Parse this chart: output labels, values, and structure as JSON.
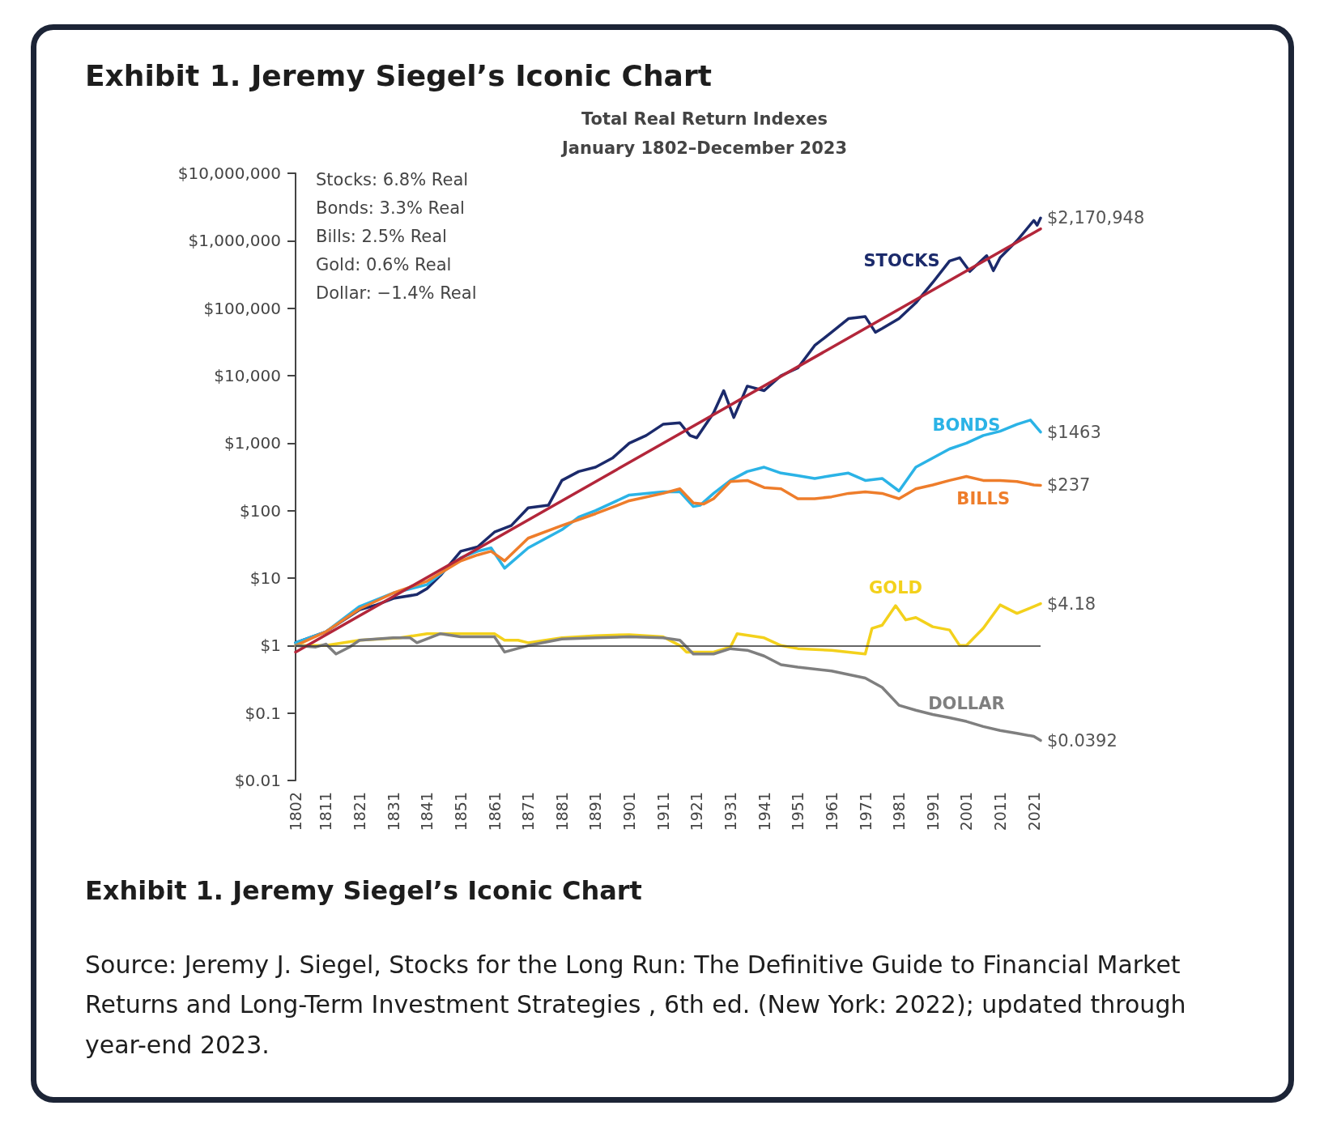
{
  "chart_data": {
    "type": "line",
    "title": "Exhibit 1. Jeremy Siegel’s Iconic Chart",
    "subtitle": "Total Real Return Indexes\nJanuary 1802–December 2023",
    "xlim": [
      1802,
      2023
    ],
    "xticks": [
      1802,
      1811,
      1821,
      1831,
      1841,
      1851,
      1861,
      1871,
      1881,
      1891,
      1901,
      1911,
      1921,
      1931,
      1941,
      1951,
      1961,
      1971,
      1981,
      1991,
      2001,
      2011,
      2021
    ],
    "log": "y",
    "ylim": [
      0.01,
      10000000
    ],
    "yticks": [
      {
        "value": 0.01,
        "label": "$0.01"
      },
      {
        "value": 0.1,
        "label": "$0.1"
      },
      {
        "value": 1,
        "label": "$1"
      },
      {
        "value": 10,
        "label": "$10"
      },
      {
        "value": 100,
        "label": "$100"
      },
      {
        "value": 1000,
        "label": "$1,000"
      },
      {
        "value": 10000,
        "label": "$10,000"
      },
      {
        "value": 100000,
        "label": "$100,000"
      },
      {
        "value": 1000000,
        "label": "$1,000,000"
      },
      {
        "value": 10000000,
        "label": "$10,000,000"
      }
    ],
    "grid": false,
    "legend": false,
    "marker": "none",
    "line_style": "solid",
    "ref_lines": [
      {
        "axis": "y",
        "value": 1,
        "color": "#333333"
      }
    ],
    "series": [
      {
        "name": "STOCKS",
        "color": "#1b2a6b",
        "x": [
          1802,
          1811,
          1821,
          1826,
          1831,
          1838,
          1841,
          1845,
          1851,
          1856,
          1861,
          1866,
          1871,
          1877,
          1881,
          1886,
          1891,
          1896,
          1901,
          1906,
          1911,
          1916,
          1919,
          1921,
          1926,
          1929,
          1932,
          1936,
          1941,
          1946,
          1951,
          1956,
          1961,
          1966,
          1971,
          1974,
          1976,
          1981,
          1986,
          1991,
          1996,
          1999,
          2002,
          2007,
          2009,
          2011,
          2016,
          2021,
          2022,
          2023
        ],
        "values": [
          1.1,
          1.6,
          3.4,
          4,
          5,
          5.7,
          7,
          11,
          25,
          29,
          48,
          60,
          110,
          120,
          280,
          380,
          440,
          600,
          1000,
          1300,
          1900,
          2000,
          1300,
          1200,
          2800,
          6000,
          2400,
          7000,
          6000,
          10000,
          13000,
          28000,
          44000,
          70000,
          75000,
          44000,
          50000,
          70000,
          120000,
          240000,
          500000,
          560000,
          350000,
          600000,
          360000,
          560000,
          1000000,
          2000000,
          1700000,
          2170948
        ],
        "value_labels": [
          null,
          null,
          null,
          null,
          null,
          null,
          null,
          null,
          null,
          null,
          null,
          null,
          null,
          null,
          null,
          null,
          null,
          null,
          null,
          null,
          null,
          null,
          null,
          null,
          null,
          null,
          null,
          null,
          null,
          null,
          null,
          null,
          null,
          null,
          null,
          null,
          null,
          null,
          null,
          null,
          null,
          null,
          null,
          null,
          null,
          null,
          null,
          null,
          null,
          "$2,170,948"
        ]
      },
      {
        "name": "BONDS",
        "color": "#2bb3e6",
        "x": [
          1802,
          1811,
          1821,
          1831,
          1841,
          1851,
          1856,
          1860,
          1864,
          1871,
          1881,
          1886,
          1891,
          1901,
          1911,
          1916,
          1920,
          1922,
          1926,
          1931,
          1936,
          1941,
          1946,
          1951,
          1956,
          1961,
          1966,
          1971,
          1976,
          1981,
          1986,
          1991,
          1996,
          2001,
          2006,
          2011,
          2016,
          2020,
          2023
        ],
        "values": [
          1.1,
          1.6,
          3.8,
          6,
          8,
          20,
          25,
          28,
          14,
          28,
          52,
          80,
          100,
          170,
          190,
          190,
          115,
          120,
          180,
          280,
          380,
          440,
          360,
          330,
          300,
          330,
          360,
          280,
          300,
          195,
          440,
          600,
          820,
          1000,
          1300,
          1500,
          1900,
          2200,
          1463
        ],
        "value_labels": [
          null,
          null,
          null,
          null,
          null,
          null,
          null,
          null,
          null,
          null,
          null,
          null,
          null,
          null,
          null,
          null,
          null,
          null,
          null,
          null,
          null,
          null,
          null,
          null,
          null,
          null,
          null,
          null,
          null,
          null,
          null,
          null,
          null,
          null,
          null,
          null,
          null,
          null,
          "$1463"
        ]
      },
      {
        "name": "BILLS",
        "color": "#ee7d2b",
        "x": [
          1802,
          1811,
          1821,
          1831,
          1841,
          1851,
          1856,
          1860,
          1864,
          1871,
          1881,
          1891,
          1901,
          1911,
          1916,
          1920,
          1923,
          1926,
          1931,
          1936,
          1941,
          1946,
          1951,
          1956,
          1961,
          1966,
          1971,
          1976,
          1981,
          1986,
          1991,
          1996,
          2001,
          2006,
          2011,
          2016,
          2021,
          2023
        ],
        "values": [
          1.0,
          1.6,
          3.5,
          6,
          9,
          18,
          22,
          25,
          18,
          39,
          60,
          90,
          140,
          180,
          210,
          130,
          125,
          150,
          270,
          280,
          220,
          210,
          150,
          150,
          160,
          180,
          190,
          180,
          150,
          210,
          240,
          280,
          320,
          280,
          280,
          270,
          240,
          237
        ],
        "value_labels": [
          null,
          null,
          null,
          null,
          null,
          null,
          null,
          null,
          null,
          null,
          null,
          null,
          null,
          null,
          null,
          null,
          null,
          null,
          null,
          null,
          null,
          null,
          null,
          null,
          null,
          null,
          null,
          null,
          null,
          null,
          null,
          null,
          null,
          null,
          null,
          null,
          null,
          "$237"
        ]
      },
      {
        "name": "GOLD",
        "color": "#f3d11c",
        "x": [
          1802,
          1811,
          1821,
          1833,
          1841,
          1851,
          1861,
          1864,
          1868,
          1871,
          1881,
          1891,
          1901,
          1911,
          1916,
          1918,
          1921,
          1926,
          1931,
          1933,
          1941,
          1946,
          1951,
          1961,
          1971,
          1973,
          1976,
          1980,
          1983,
          1986,
          1991,
          1996,
          1999,
          2001,
          2006,
          2011,
          2016,
          2020,
          2023
        ],
        "values": [
          1.0,
          1.0,
          1.2,
          1.3,
          1.5,
          1.5,
          1.5,
          1.2,
          1.2,
          1.1,
          1.3,
          1.4,
          1.45,
          1.35,
          1.0,
          0.8,
          0.8,
          0.8,
          0.95,
          1.5,
          1.3,
          1.0,
          0.9,
          0.85,
          0.75,
          1.8,
          2.0,
          3.9,
          2.4,
          2.6,
          1.9,
          1.7,
          1.0,
          1.0,
          1.8,
          4.0,
          3.0,
          3.6,
          4.18
        ],
        "value_labels": [
          null,
          null,
          null,
          null,
          null,
          null,
          null,
          null,
          null,
          null,
          null,
          null,
          null,
          null,
          null,
          null,
          null,
          null,
          null,
          null,
          null,
          null,
          null,
          null,
          null,
          null,
          null,
          null,
          null,
          null,
          null,
          null,
          null,
          null,
          null,
          null,
          null,
          null,
          "$4.18"
        ]
      },
      {
        "name": "DOLLAR",
        "color": "#7f7f7f",
        "x": [
          1802,
          1808,
          1811,
          1814,
          1818,
          1821,
          1831,
          1836,
          1838,
          1845,
          1851,
          1861,
          1864,
          1871,
          1881,
          1891,
          1901,
          1911,
          1916,
          1920,
          1926,
          1931,
          1936,
          1941,
          1946,
          1951,
          1961,
          1971,
          1976,
          1981,
          1986,
          1991,
          1996,
          2001,
          2006,
          2011,
          2016,
          2021,
          2023
        ],
        "values": [
          1.0,
          0.95,
          1.05,
          0.75,
          0.95,
          1.2,
          1.3,
          1.3,
          1.1,
          1.5,
          1.35,
          1.35,
          0.8,
          1.0,
          1.25,
          1.3,
          1.35,
          1.3,
          1.2,
          0.75,
          0.75,
          0.9,
          0.85,
          0.7,
          0.52,
          0.48,
          0.42,
          0.33,
          0.24,
          0.13,
          0.11,
          0.095,
          0.085,
          0.075,
          0.063,
          0.055,
          0.05,
          0.045,
          0.0392
        ],
        "value_labels": [
          null,
          null,
          null,
          null,
          null,
          null,
          null,
          null,
          null,
          null,
          null,
          null,
          null,
          null,
          null,
          null,
          null,
          null,
          null,
          null,
          null,
          null,
          null,
          null,
          null,
          null,
          null,
          null,
          null,
          null,
          null,
          null,
          null,
          null,
          null,
          null,
          null,
          null,
          "$0.0392"
        ]
      },
      {
        "type": "line",
        "color": "#b3263a",
        "x": [
          1802,
          2023
        ],
        "values": [
          0.8,
          1500000
        ]
      }
    ],
    "annotations": [
      "Stocks: 6.8% Real\nBonds: 3.3% Real\nBills: 2.5% Real\nGold: 0.6% Real\nDollar: −1.4% Real",
      "Exhibit 1. Jeremy Siegel’s Iconic Chart",
      "Source: Jeremy J. Siegel, Stocks for the Long Run: The Definitive Guide to Financial Market Returns and Long-Term Investment Strategies , 6th ed. (New York: 2022); updated through year-end 2023."
    ]
  }
}
